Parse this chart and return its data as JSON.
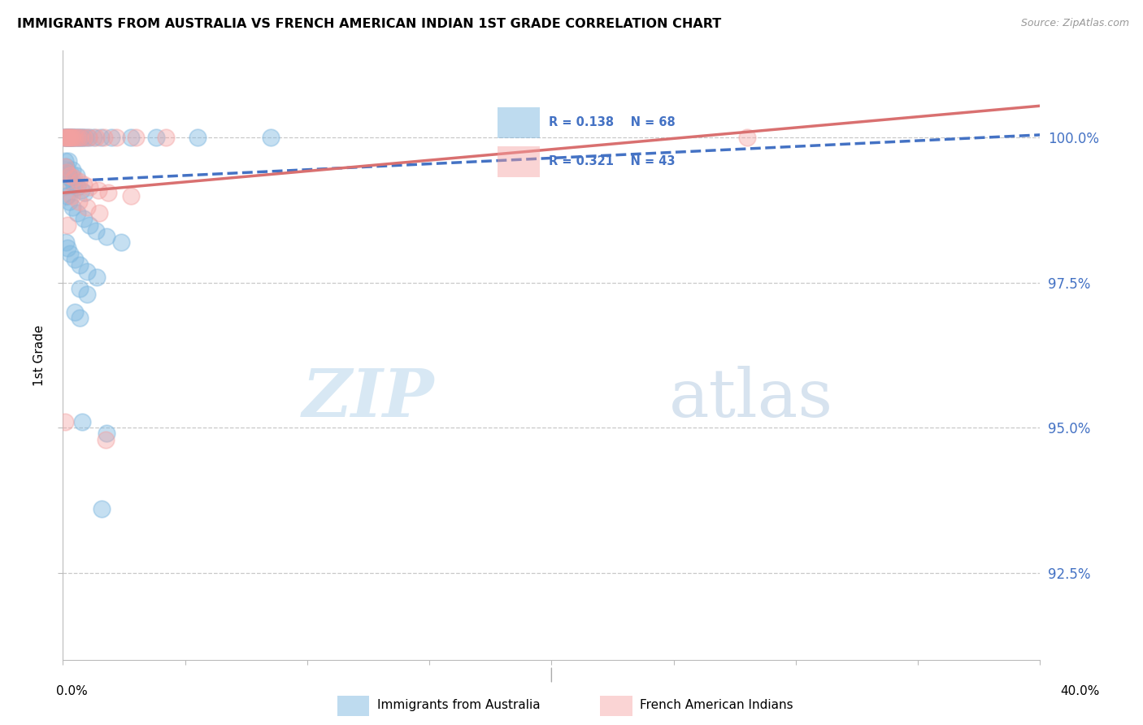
{
  "title": "IMMIGRANTS FROM AUSTRALIA VS FRENCH AMERICAN INDIAN 1ST GRADE CORRELATION CHART",
  "source": "Source: ZipAtlas.com",
  "ylabel": "1st Grade",
  "yticks": [
    100.0,
    97.5,
    95.0,
    92.5
  ],
  "ytick_labels": [
    "100.0%",
    "97.5%",
    "95.0%",
    "92.5%"
  ],
  "ylim": [
    91.0,
    101.5
  ],
  "xlim": [
    0.0,
    40.0
  ],
  "legend_blue_label": "Immigrants from Australia",
  "legend_pink_label": "French American Indians",
  "R_blue": "R = 0.138",
  "N_blue": "N = 68",
  "R_pink": "R = 0.321",
  "N_pink": "N = 43",
  "blue_color": "#7fb8e0",
  "pink_color": "#f4a0a0",
  "blue_line_y0": 99.25,
  "blue_line_y1": 100.05,
  "pink_line_y0": 99.05,
  "pink_line_y1": 100.55,
  "blue_dots": [
    [
      0.05,
      100.0
    ],
    [
      0.1,
      100.0
    ],
    [
      0.12,
      100.0
    ],
    [
      0.15,
      100.0
    ],
    [
      0.18,
      100.0
    ],
    [
      0.22,
      100.0
    ],
    [
      0.25,
      100.0
    ],
    [
      0.28,
      100.0
    ],
    [
      0.32,
      100.0
    ],
    [
      0.35,
      100.0
    ],
    [
      0.38,
      100.0
    ],
    [
      0.42,
      100.0
    ],
    [
      0.48,
      100.0
    ],
    [
      0.55,
      100.0
    ],
    [
      0.62,
      100.0
    ],
    [
      0.68,
      100.0
    ],
    [
      0.75,
      100.0
    ],
    [
      0.82,
      100.0
    ],
    [
      0.92,
      100.0
    ],
    [
      1.05,
      100.0
    ],
    [
      1.25,
      100.0
    ],
    [
      1.55,
      100.0
    ],
    [
      2.0,
      100.0
    ],
    [
      2.8,
      100.0
    ],
    [
      3.8,
      100.0
    ],
    [
      5.5,
      100.0
    ],
    [
      8.5,
      100.0
    ],
    [
      0.08,
      99.6
    ],
    [
      0.13,
      99.5
    ],
    [
      0.2,
      99.4
    ],
    [
      0.3,
      99.3
    ],
    [
      0.45,
      99.2
    ],
    [
      0.6,
      99.15
    ],
    [
      0.75,
      99.1
    ],
    [
      0.9,
      99.05
    ],
    [
      0.22,
      99.6
    ],
    [
      0.38,
      99.45
    ],
    [
      0.55,
      99.35
    ],
    [
      0.15,
      99.0
    ],
    [
      0.25,
      98.9
    ],
    [
      0.4,
      98.8
    ],
    [
      0.6,
      98.7
    ],
    [
      0.85,
      98.6
    ],
    [
      1.1,
      98.5
    ],
    [
      1.35,
      98.4
    ],
    [
      1.8,
      98.3
    ],
    [
      2.4,
      98.2
    ],
    [
      0.12,
      98.2
    ],
    [
      0.2,
      98.1
    ],
    [
      0.3,
      98.0
    ],
    [
      0.5,
      97.9
    ],
    [
      0.7,
      97.8
    ],
    [
      1.0,
      97.7
    ],
    [
      1.4,
      97.6
    ],
    [
      0.7,
      97.4
    ],
    [
      1.0,
      97.3
    ],
    [
      0.5,
      97.0
    ],
    [
      0.7,
      96.9
    ],
    [
      0.8,
      95.1
    ],
    [
      1.8,
      94.9
    ],
    [
      1.6,
      93.6
    ]
  ],
  "pink_dots": [
    [
      0.05,
      100.0
    ],
    [
      0.1,
      100.0
    ],
    [
      0.15,
      100.0
    ],
    [
      0.2,
      100.0
    ],
    [
      0.25,
      100.0
    ],
    [
      0.3,
      100.0
    ],
    [
      0.35,
      100.0
    ],
    [
      0.4,
      100.0
    ],
    [
      0.5,
      100.0
    ],
    [
      0.6,
      100.0
    ],
    [
      0.7,
      100.0
    ],
    [
      0.85,
      100.0
    ],
    [
      1.05,
      100.0
    ],
    [
      1.35,
      100.0
    ],
    [
      1.7,
      100.0
    ],
    [
      2.2,
      100.0
    ],
    [
      3.0,
      100.0
    ],
    [
      4.2,
      100.0
    ],
    [
      28.0,
      100.0
    ],
    [
      0.08,
      99.5
    ],
    [
      0.15,
      99.4
    ],
    [
      0.28,
      99.35
    ],
    [
      0.45,
      99.3
    ],
    [
      0.65,
      99.25
    ],
    [
      0.85,
      99.2
    ],
    [
      1.1,
      99.15
    ],
    [
      1.45,
      99.1
    ],
    [
      1.85,
      99.05
    ],
    [
      0.35,
      99.0
    ],
    [
      0.65,
      98.9
    ],
    [
      1.0,
      98.8
    ],
    [
      1.5,
      98.7
    ],
    [
      2.8,
      99.0
    ],
    [
      0.18,
      98.5
    ],
    [
      0.1,
      95.1
    ],
    [
      1.75,
      94.8
    ]
  ],
  "big_blue_dot": [
    0.02,
    99.3
  ],
  "big_pink_dot": [
    0.02,
    99.1
  ],
  "watermark_zip": "ZIP",
  "watermark_atlas": "atlas",
  "xtick_positions": [
    0,
    5,
    10,
    15,
    20,
    25,
    30,
    35,
    40
  ]
}
